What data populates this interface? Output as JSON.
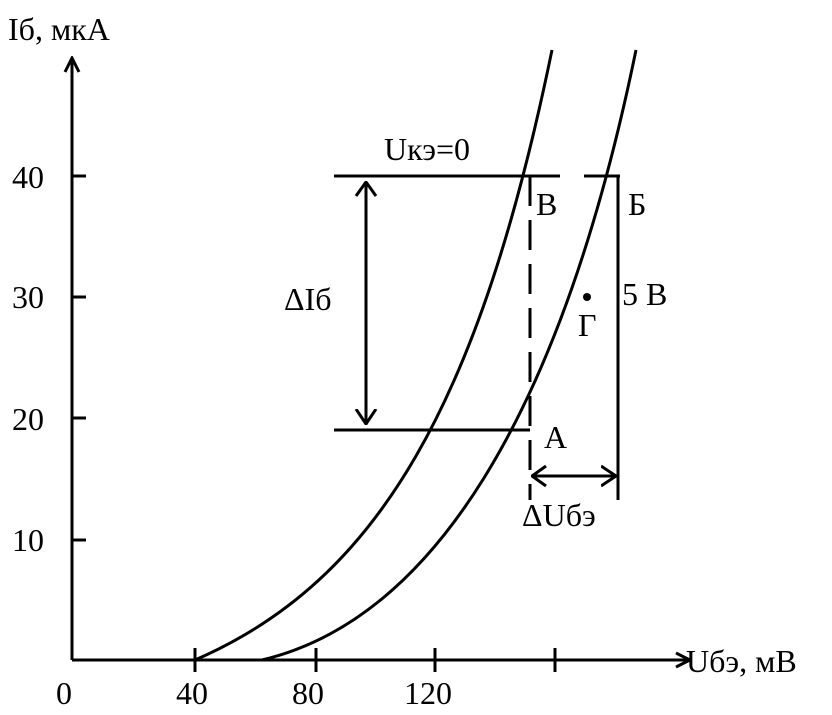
{
  "axes": {
    "y_title": "Iб, мкА",
    "x_title": "Uбэ, мВ",
    "y_ticks": [
      "10",
      "20",
      "30",
      "40"
    ],
    "x_ticks": [
      "0",
      "40",
      "80",
      "120"
    ]
  },
  "labels": {
    "curve0": "Uкэ=0",
    "curve5": "5 В",
    "point_A": "A",
    "point_B": "Б",
    "point_V": "В",
    "point_G": "Г",
    "delta_Ib": "ΔIб",
    "delta_Ube": "ΔUбэ"
  },
  "chart_data": {
    "type": "line",
    "xlabel": "Uбэ, мВ",
    "ylabel": "Iб, мкА",
    "x_ticks": [
      0,
      40,
      80,
      120
    ],
    "y_ticks": [
      10,
      20,
      30,
      40
    ],
    "series": [
      {
        "name": "Uкэ=0",
        "points": [
          [
            40,
            0
          ],
          [
            60,
            2
          ],
          [
            80,
            5
          ],
          [
            100,
            10
          ],
          [
            120,
            19
          ],
          [
            140,
            31
          ],
          [
            150,
            40
          ],
          [
            160,
            52
          ]
        ]
      },
      {
        "name": "5 В",
        "points": [
          [
            65,
            0
          ],
          [
            85,
            2
          ],
          [
            105,
            6
          ],
          [
            125,
            12
          ],
          [
            150,
            19
          ],
          [
            170,
            30
          ],
          [
            180,
            40
          ],
          [
            190,
            52
          ]
        ]
      }
    ],
    "points": [
      {
        "name": "A",
        "x": 150,
        "y": 19
      },
      {
        "name": "Б",
        "x": 180,
        "y": 40
      },
      {
        "name": "В",
        "x": 150,
        "y": 40
      },
      {
        "name": "Г",
        "x": 170,
        "y": 30
      }
    ]
  }
}
